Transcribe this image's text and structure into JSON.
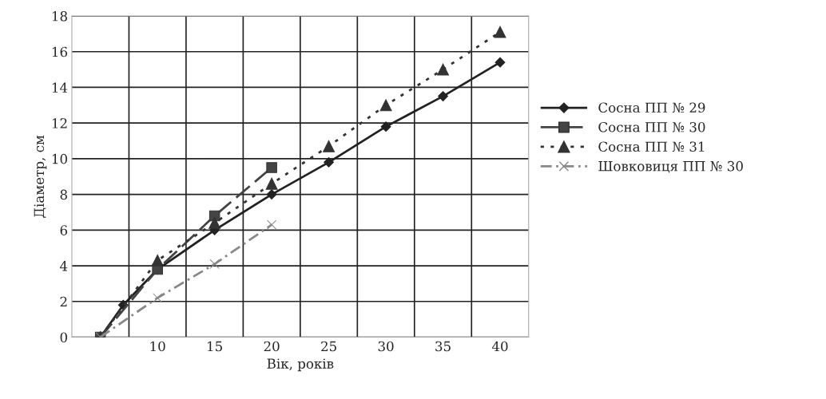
{
  "chart_data": {
    "type": "line",
    "xlabel": "Вік, років",
    "ylabel": "Діаметр, см",
    "xlim": [
      2.5,
      42.5
    ],
    "ylim": [
      0,
      18
    ],
    "xticks": [
      {
        "value": 7.5,
        "label": null
      },
      {
        "value": 12.5,
        "label": null
      },
      {
        "value": 17.5,
        "label": null
      },
      {
        "value": 22.5,
        "label": null
      },
      {
        "value": 27.5,
        "label": null
      },
      {
        "value": 32.5,
        "label": null
      },
      {
        "value": 37.5,
        "label": null
      },
      10,
      15,
      20,
      25,
      30,
      35,
      40
    ],
    "yticks": [
      0,
      2,
      4,
      6,
      8,
      10,
      12,
      14,
      16,
      18
    ],
    "grid": true,
    "legend": "right",
    "series": [
      {
        "name": "Сосна ПП № 29",
        "color": "#222222",
        "marker": "diamond",
        "line_style": "solid",
        "x": [
          5,
          7,
          10,
          15,
          20,
          25,
          30,
          35,
          40
        ],
        "values": [
          0,
          1.8,
          3.8,
          6.0,
          8.0,
          9.8,
          11.8,
          13.5,
          15.4
        ]
      },
      {
        "name": "Сосна ПП № 30",
        "color": "#444444",
        "marker": "square",
        "line_style": "dashed",
        "x": [
          5,
          10,
          15,
          20
        ],
        "values": [
          0,
          3.8,
          6.8,
          9.5
        ]
      },
      {
        "name": "Сосна ПП № 31",
        "color": "#333333",
        "marker": "triangle",
        "line_style": "dotted",
        "x": [
          5,
          10,
          15,
          20,
          25,
          30,
          35,
          40
        ],
        "values": [
          0,
          4.3,
          6.4,
          8.6,
          10.7,
          13.0,
          15.0,
          17.1
        ]
      },
      {
        "name": "Шовковиця ПП № 30",
        "color": "#888888",
        "marker": "cross",
        "line_style": "dashdot",
        "x": [
          5,
          10,
          15,
          20
        ],
        "values": [
          0,
          2.2,
          4.1,
          6.3
        ]
      }
    ]
  }
}
